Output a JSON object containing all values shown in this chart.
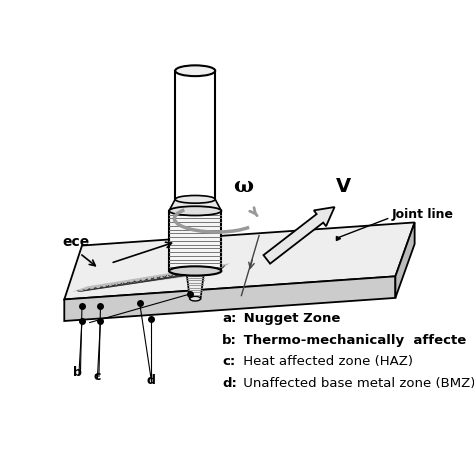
{
  "bg_color": "#ffffff",
  "lc": "#000000",
  "gray": "#aaaaaa",
  "lgray": "#d8d8d8",
  "dgray": "#666666",
  "weld_gray": "#888888",
  "legend_a": "a: Nugget Zone",
  "legend_b": "b: Thermo-mechanically  affecte",
  "legend_c": "c: Heat affected zone (HAZ)",
  "legend_d": "d: Unaffected base metal zone (BMZ)",
  "omega": "ω",
  "V": "V",
  "joint_line": "Joint li",
  "workpiece": "ece",
  "figsize": [
    4.74,
    4.74
  ],
  "dpi": 100
}
